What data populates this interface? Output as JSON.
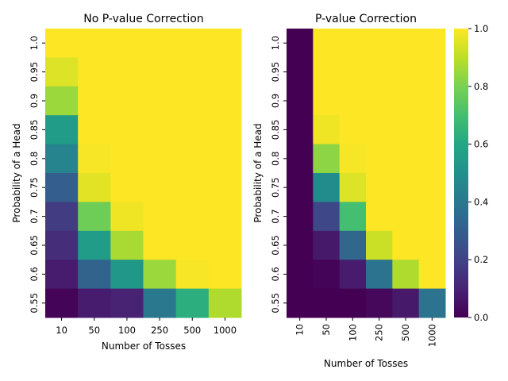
{
  "chart_data": [
    {
      "type": "heatmap",
      "title": "No P-value Correction",
      "xlabel": "Number of Tosses",
      "ylabel": "Probability of a Head",
      "x_categories": [
        "10",
        "50",
        "100",
        "250",
        "500",
        "1000"
      ],
      "y_categories": [
        "1.0",
        "0.95",
        "0.9",
        "0.85",
        "0.8",
        "0.75",
        "0.7",
        "0.65",
        "0.6",
        "0.55"
      ],
      "x_tick_rotation": 0,
      "values": [
        [
          1.0,
          1.0,
          1.0,
          1.0,
          1.0,
          1.0
        ],
        [
          0.95,
          1.0,
          1.0,
          1.0,
          1.0,
          1.0
        ],
        [
          0.85,
          1.0,
          1.0,
          1.0,
          1.0,
          1.0
        ],
        [
          0.55,
          1.0,
          1.0,
          1.0,
          1.0,
          1.0
        ],
        [
          0.45,
          0.99,
          1.0,
          1.0,
          1.0,
          1.0
        ],
        [
          0.3,
          0.96,
          1.0,
          1.0,
          1.0,
          1.0
        ],
        [
          0.18,
          0.78,
          0.98,
          1.0,
          1.0,
          1.0
        ],
        [
          0.13,
          0.55,
          0.87,
          1.0,
          1.0,
          1.0
        ],
        [
          0.08,
          0.32,
          0.53,
          0.85,
          0.99,
          1.0
        ],
        [
          0.01,
          0.08,
          0.1,
          0.4,
          0.63,
          0.88
        ]
      ]
    },
    {
      "type": "heatmap",
      "title": "P-value Correction",
      "xlabel": "Number of Tosses",
      "ylabel": "Probability of a Head",
      "x_categories": [
        "10",
        "50",
        "100",
        "250",
        "500",
        "1000"
      ],
      "y_categories": [
        "1.0",
        "0.95",
        "0.9",
        "0.85",
        "0.8",
        "0.75",
        "0.7",
        "0.65",
        "0.6",
        "0.55"
      ],
      "x_tick_rotation": 90,
      "values": [
        [
          0.0,
          1.0,
          1.0,
          1.0,
          1.0,
          1.0
        ],
        [
          0.0,
          1.0,
          1.0,
          1.0,
          1.0,
          1.0
        ],
        [
          0.0,
          1.0,
          1.0,
          1.0,
          1.0,
          1.0
        ],
        [
          0.0,
          0.98,
          1.0,
          1.0,
          1.0,
          1.0
        ],
        [
          0.0,
          0.83,
          0.99,
          1.0,
          1.0,
          1.0
        ],
        [
          0.0,
          0.48,
          0.95,
          1.0,
          1.0,
          1.0
        ],
        [
          0.0,
          0.22,
          0.7,
          1.0,
          1.0,
          1.0
        ],
        [
          0.0,
          0.07,
          0.33,
          0.92,
          1.0,
          1.0
        ],
        [
          0.0,
          0.01,
          0.08,
          0.38,
          0.88,
          1.0
        ],
        [
          0.0,
          0.0,
          0.0,
          0.02,
          0.07,
          0.38
        ]
      ]
    }
  ],
  "colorbar": {
    "colormap": "viridis",
    "range": [
      0.0,
      1.0
    ],
    "ticks": [
      "0.0",
      "0.2",
      "0.4",
      "0.6",
      "0.8",
      "1.0"
    ]
  }
}
